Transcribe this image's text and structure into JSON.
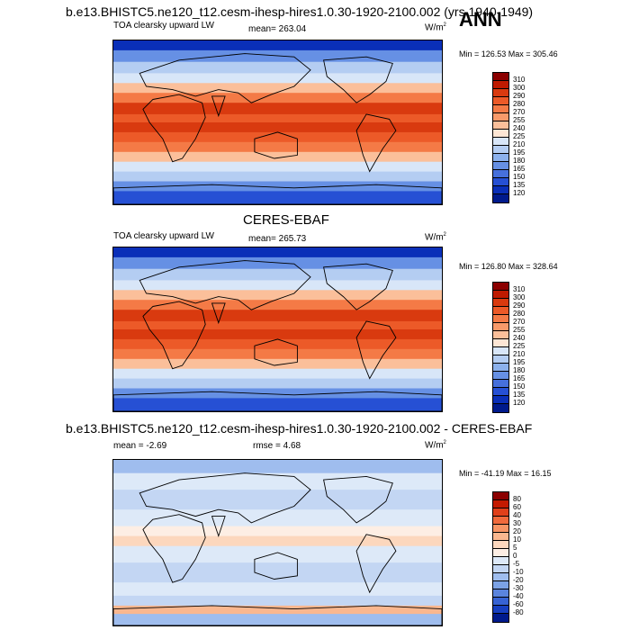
{
  "header": {
    "title": "b.e13.BHISTC5.ne120_t12.cesm-ihesp-hires1.0.30-1920-2100.002 (yrs 1940-1949)",
    "season": "ANN"
  },
  "panels": [
    {
      "id": "model",
      "section_title": "",
      "left_label": "TOA clearsky upward LW",
      "center_label": "mean= 263.04",
      "unit_base": "W/m",
      "unit_sup": "2",
      "minmax": "Min = 126.53 Max = 305.46",
      "levels": [
        "310",
        "300",
        "290",
        "280",
        "270",
        "255",
        "240",
        "225",
        "210",
        "195",
        "180",
        "165",
        "150",
        "135",
        "120"
      ],
      "colors": [
        "#8b0000",
        "#bf1a00",
        "#d93a0f",
        "#ec5a28",
        "#f47a46",
        "#f89a6a",
        "#fbbf9a",
        "#fde6d4",
        "#d8e6f8",
        "#b4cdf2",
        "#8cb1ec",
        "#6690e4",
        "#4670dc",
        "#2650d4",
        "#0a2fb8",
        "#001a8c"
      ],
      "style": "abs"
    },
    {
      "id": "obs",
      "section_title": "CERES-EBAF",
      "left_label": "TOA clearsky upward LW",
      "center_label": "mean= 265.73",
      "unit_base": "W/m",
      "unit_sup": "2",
      "minmax": "Min = 126.80 Max = 328.64",
      "levels": [
        "310",
        "300",
        "290",
        "280",
        "270",
        "255",
        "240",
        "225",
        "210",
        "195",
        "180",
        "165",
        "150",
        "135",
        "120"
      ],
      "colors": [
        "#8b0000",
        "#bf1a00",
        "#d93a0f",
        "#ec5a28",
        "#f47a46",
        "#f89a6a",
        "#fbbf9a",
        "#fde6d4",
        "#d8e6f8",
        "#b4cdf2",
        "#8cb1ec",
        "#6690e4",
        "#4670dc",
        "#2650d4",
        "#0a2fb8",
        "#001a8c"
      ],
      "style": "abs"
    },
    {
      "id": "diff",
      "section_title": "b.e13.BHISTC5.ne120_t12.cesm-ihesp-hires1.0.30-1920-2100.002 - CERES-EBAF",
      "left_label": "mean =  -2.69",
      "center_label": "rmse =   4.68",
      "unit_base": "W/m",
      "unit_sup": "2",
      "minmax": "Min = -41.19 Max =  16.15",
      "levels": [
        "80",
        "60",
        "40",
        "30",
        "20",
        "10",
        "5",
        "0",
        "-5",
        "-10",
        "-20",
        "-30",
        "-40",
        "-60",
        "-80"
      ],
      "colors": [
        "#8b0000",
        "#c41a00",
        "#e0401a",
        "#f06a3c",
        "#f79464",
        "#fab78f",
        "#fcd7bd",
        "#fdeee4",
        "#dde9f8",
        "#c3d6f3",
        "#9fbdee",
        "#7ba2e6",
        "#5a84de",
        "#3763d4",
        "#173fc0",
        "#001a8c"
      ],
      "style": "diff"
    }
  ]
}
